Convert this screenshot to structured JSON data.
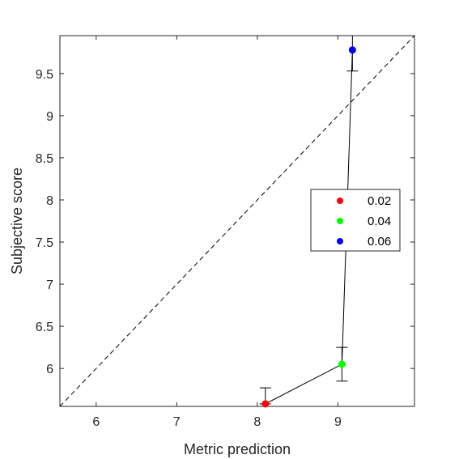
{
  "chart_data": {
    "type": "scatter",
    "xlabel": "Metric prediction",
    "ylabel": "Subjective score",
    "xlim": [
      5.55,
      9.95
    ],
    "ylim": [
      5.55,
      9.95
    ],
    "xticks": [
      6,
      7,
      8,
      9
    ],
    "xtick_labels": [
      "6",
      "7",
      "8",
      "9"
    ],
    "yticks": [
      6,
      6.5,
      7,
      7.5,
      8,
      8.5,
      9,
      9.5
    ],
    "ytick_labels": [
      "6",
      "6.5",
      "7",
      "7.5",
      "8",
      "8.5",
      "9",
      "9.5"
    ],
    "grid": false,
    "legend_position": "right",
    "reference_line": "y = x (dashed)",
    "series": [
      {
        "name": "0.02",
        "color": "#ff0000",
        "x": 8.1,
        "y": 5.58,
        "err_low": 5.58,
        "err_high": 5.77
      },
      {
        "name": "0.04",
        "color": "#00ff00",
        "x": 9.05,
        "y": 6.05,
        "err_low": 5.85,
        "err_high": 6.25
      },
      {
        "name": "0.06",
        "color": "#0000ff",
        "x": 9.18,
        "y": 9.78,
        "err_low": 9.53,
        "err_high": 9.95
      }
    ],
    "connecting_line": {
      "color": "#000000"
    }
  }
}
